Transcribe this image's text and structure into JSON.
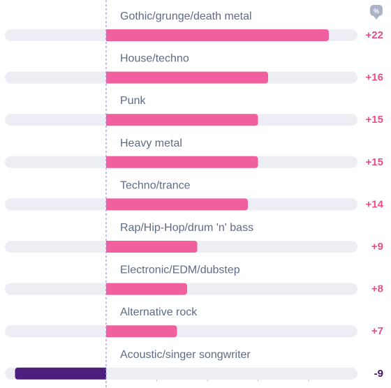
{
  "chart_data": {
    "type": "bar",
    "orientation": "horizontal",
    "unit": "%",
    "categories": [
      "Gothic/grunge/death metal",
      "House/techno",
      "Punk",
      "Heavy metal",
      "Techno/trance",
      "Rap/Hip-Hop/drum 'n' bass",
      "Electronic/EDM/dubstep",
      "Alternative rock",
      "Acoustic/singer songwriter"
    ],
    "values": [
      22,
      16,
      15,
      15,
      14,
      9,
      8,
      7,
      -9
    ],
    "value_labels": [
      "+22",
      "+16",
      "+15",
      "+15",
      "+14",
      "+9",
      "+8",
      "+7",
      "-9"
    ],
    "xlim": [
      -10,
      22
    ],
    "grid": false,
    "colors": {
      "positive": "#f0609e",
      "negative": "#4e1e7e",
      "positive_label": "#ea4b8b",
      "negative_label": "#3d1466",
      "track": "#eceef3",
      "category_label": "#5f6b85",
      "zero_line": "#9a91d8",
      "unit_badge": "#aab3c7"
    }
  }
}
